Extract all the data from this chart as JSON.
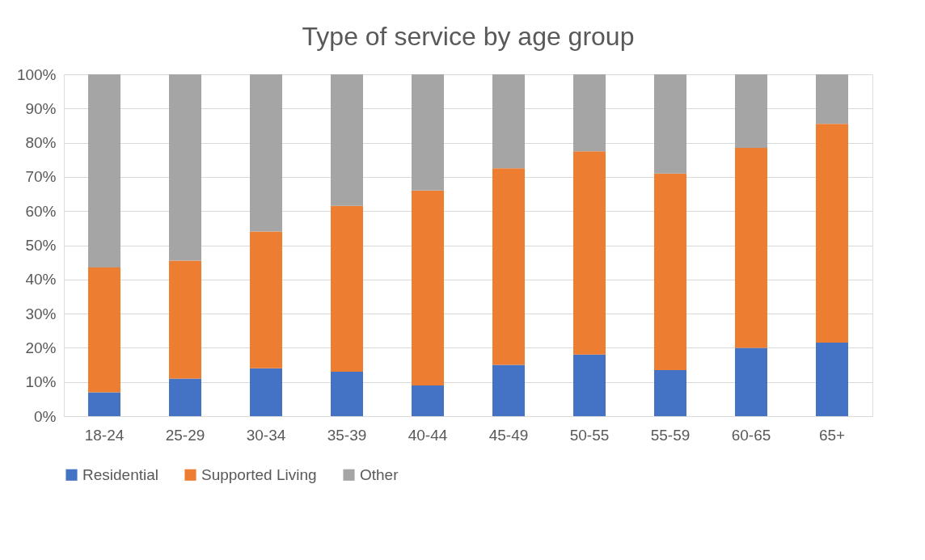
{
  "chart_data": {
    "type": "bar",
    "title": "Type of service by age group",
    "stacked": true,
    "categories": [
      "18-24",
      "25-29",
      "30-34",
      "35-39",
      "40-44",
      "45-49",
      "50-55",
      "55-59",
      "60-65",
      "65+"
    ],
    "series": [
      {
        "name": "Residential",
        "color": "#4472c4",
        "values": [
          7,
          11,
          14,
          13,
          9,
          15,
          18,
          13.5,
          20,
          21.5
        ]
      },
      {
        "name": "Supported Living",
        "color": "#ed7d31",
        "values": [
          36.5,
          34.5,
          40,
          48.5,
          57,
          57.5,
          59.5,
          57.5,
          58.5,
          64
        ]
      },
      {
        "name": "Other",
        "color": "#a5a5a5",
        "values": [
          56.5,
          54.5,
          46,
          38.5,
          34,
          27.5,
          22.5,
          29,
          21.5,
          14.5
        ]
      }
    ],
    "ylim": [
      0,
      100
    ],
    "yticks": [
      {
        "value": 0,
        "label": "0%"
      },
      {
        "value": 10,
        "label": "10%"
      },
      {
        "value": 20,
        "label": "20%"
      },
      {
        "value": 30,
        "label": "30%"
      },
      {
        "value": 40,
        "label": "40%"
      },
      {
        "value": 50,
        "label": "50%"
      },
      {
        "value": 60,
        "label": "60%"
      },
      {
        "value": 70,
        "label": "70%"
      },
      {
        "value": 80,
        "label": "80%"
      },
      {
        "value": 90,
        "label": "90%"
      },
      {
        "value": 100,
        "label": "100%"
      }
    ],
    "grid": "y",
    "legend": "bottom"
  }
}
